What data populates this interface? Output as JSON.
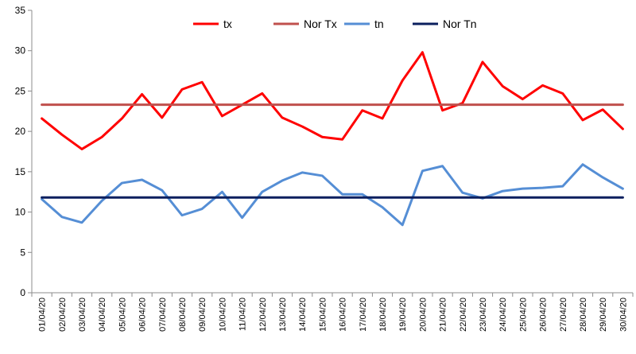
{
  "chart_data": {
    "type": "line",
    "title": "",
    "xlabel": "",
    "ylabel": "",
    "ylim": [
      0,
      35
    ],
    "yticks": [
      0,
      5,
      10,
      15,
      20,
      25,
      30,
      35
    ],
    "grid": false,
    "legend_position": "top",
    "categories": [
      "01/04/20",
      "02/04/20",
      "03/04/20",
      "04/04/20",
      "05/04/20",
      "06/04/20",
      "07/04/20",
      "08/04/20",
      "09/04/20",
      "10/04/20",
      "11/04/20",
      "12/04/20",
      "13/04/20",
      "14/04/20",
      "15/04/20",
      "16/04/20",
      "17/04/20",
      "18/04/20",
      "19/04/20",
      "20/04/20",
      "21/04/20",
      "22/04/20",
      "23/04/20",
      "24/04/20",
      "25/04/20",
      "26/04/20",
      "27/04/20",
      "28/04/20",
      "29/04/20",
      "30/04/20"
    ],
    "category_labels": [
      "01/04/20",
      "02/04/20",
      "03/04/20",
      "04/04/20",
      "05/04/20",
      "06/04/20",
      "07/04/20",
      "08/04/20",
      "09/04/20",
      "10/04/20",
      "11/04/20",
      "12/04/20",
      "13/04/20",
      "14/04/20",
      "15/04/20",
      "16/04/20",
      "17/04/20",
      "18/04/20",
      "19/04/20",
      "20/04/20",
      "21/04/20",
      "22/04/20",
      "23/04/20",
      "24/04/20",
      "25/04/20",
      "26/04/20",
      "27/04/20",
      "28/04/20",
      "29/04/20",
      "30/04/20"
    ],
    "series": [
      {
        "name": "tx",
        "color": "#ff0000",
        "values": [
          21.6,
          19.6,
          17.8,
          19.3,
          21.6,
          24.6,
          21.7,
          25.2,
          26.1,
          21.9,
          23.3,
          24.7,
          21.7,
          20.6,
          19.3,
          19.0,
          22.6,
          21.6,
          26.3,
          29.8,
          22.6,
          23.5,
          28.6,
          25.6,
          24.0,
          25.7,
          24.7,
          21.4,
          22.7,
          20.3
        ]
      },
      {
        "name": "Nor Tx",
        "color": "#c0504d",
        "values": [
          23.3,
          23.3,
          23.3,
          23.3,
          23.3,
          23.3,
          23.3,
          23.3,
          23.3,
          23.3,
          23.3,
          23.3,
          23.3,
          23.3,
          23.3,
          23.3,
          23.3,
          23.3,
          23.3,
          23.3,
          23.3,
          23.3,
          23.3,
          23.3,
          23.3,
          23.3,
          23.3,
          23.3,
          23.3,
          23.3
        ]
      },
      {
        "name": "tn",
        "color": "#558ed5",
        "values": [
          11.6,
          9.4,
          8.7,
          11.4,
          13.6,
          14.0,
          12.7,
          9.6,
          10.4,
          12.5,
          9.3,
          12.5,
          13.9,
          14.9,
          14.5,
          12.2,
          12.2,
          10.6,
          8.4,
          15.1,
          15.7,
          12.4,
          11.7,
          12.6,
          12.9,
          13.0,
          13.2,
          15.9,
          14.3,
          12.9
        ]
      },
      {
        "name": "Nor Tn",
        "color": "#0b1f5e",
        "values": [
          11.8,
          11.8,
          11.8,
          11.8,
          11.8,
          11.8,
          11.8,
          11.8,
          11.8,
          11.8,
          11.8,
          11.8,
          11.8,
          11.8,
          11.8,
          11.8,
          11.8,
          11.8,
          11.8,
          11.8,
          11.8,
          11.8,
          11.8,
          11.8,
          11.8,
          11.8,
          11.8,
          11.8,
          11.8,
          11.8
        ]
      }
    ]
  }
}
